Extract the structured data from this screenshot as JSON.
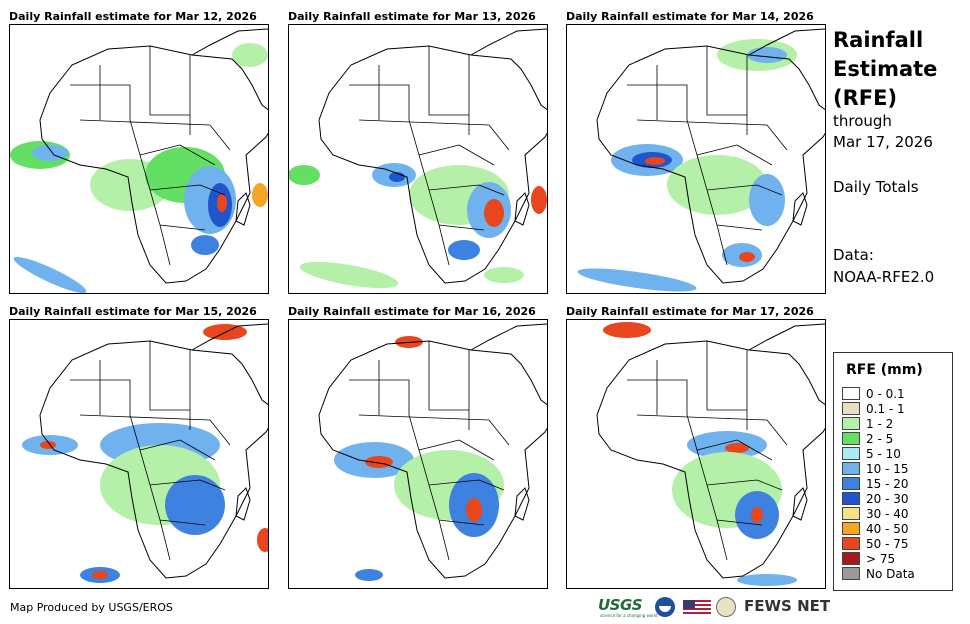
{
  "panels": [
    {
      "title": "Daily Rainfall estimate for Mar 12, 2026"
    },
    {
      "title": "Daily Rainfall estimate for Mar 13, 2026"
    },
    {
      "title": "Daily Rainfall estimate for Mar 14, 2026"
    },
    {
      "title": "Daily Rainfall estimate for Mar 15, 2026"
    },
    {
      "title": "Daily Rainfall estimate for Mar 16, 2026"
    },
    {
      "title": "Daily Rainfall estimate for Mar 17, 2026"
    }
  ],
  "side": {
    "title_line1": "Rainfall",
    "title_line2": "Estimate",
    "title_line3": "(RFE)",
    "through_label": "through",
    "through_date": "Mar 17, 2026",
    "totals": "Daily Totals",
    "data_label": "Data:",
    "data_source": "NOAA-RFE2.0"
  },
  "legend": {
    "title": "RFE (mm)",
    "items": [
      {
        "label": "0 - 0.1",
        "color": "#ffffff"
      },
      {
        "label": "0.1 - 1",
        "color": "#e9dcc4"
      },
      {
        "label": "1 - 2",
        "color": "#b4f0a8"
      },
      {
        "label": "2 - 5",
        "color": "#63e063"
      },
      {
        "label": "5 - 10",
        "color": "#a8ecf5"
      },
      {
        "label": "10 - 15",
        "color": "#6fb2ee"
      },
      {
        "label": "15 - 20",
        "color": "#3d82e0"
      },
      {
        "label": "20 - 30",
        "color": "#1f56cc"
      },
      {
        "label": "30 - 40",
        "color": "#f7e08a"
      },
      {
        "label": "40 - 50",
        "color": "#f5a623"
      },
      {
        "label": "50 - 75",
        "color": "#e8461c"
      },
      {
        "label": "> 75",
        "color": "#a8191c"
      },
      {
        "label": "No Data",
        "color": "#9a9a9a"
      }
    ]
  },
  "footer": {
    "credit": "Map Produced by USGS/EROS"
  },
  "logos": {
    "usgs": "USGS",
    "usgs_tagline": "science for a changing world",
    "fews": "FEWS NET"
  }
}
